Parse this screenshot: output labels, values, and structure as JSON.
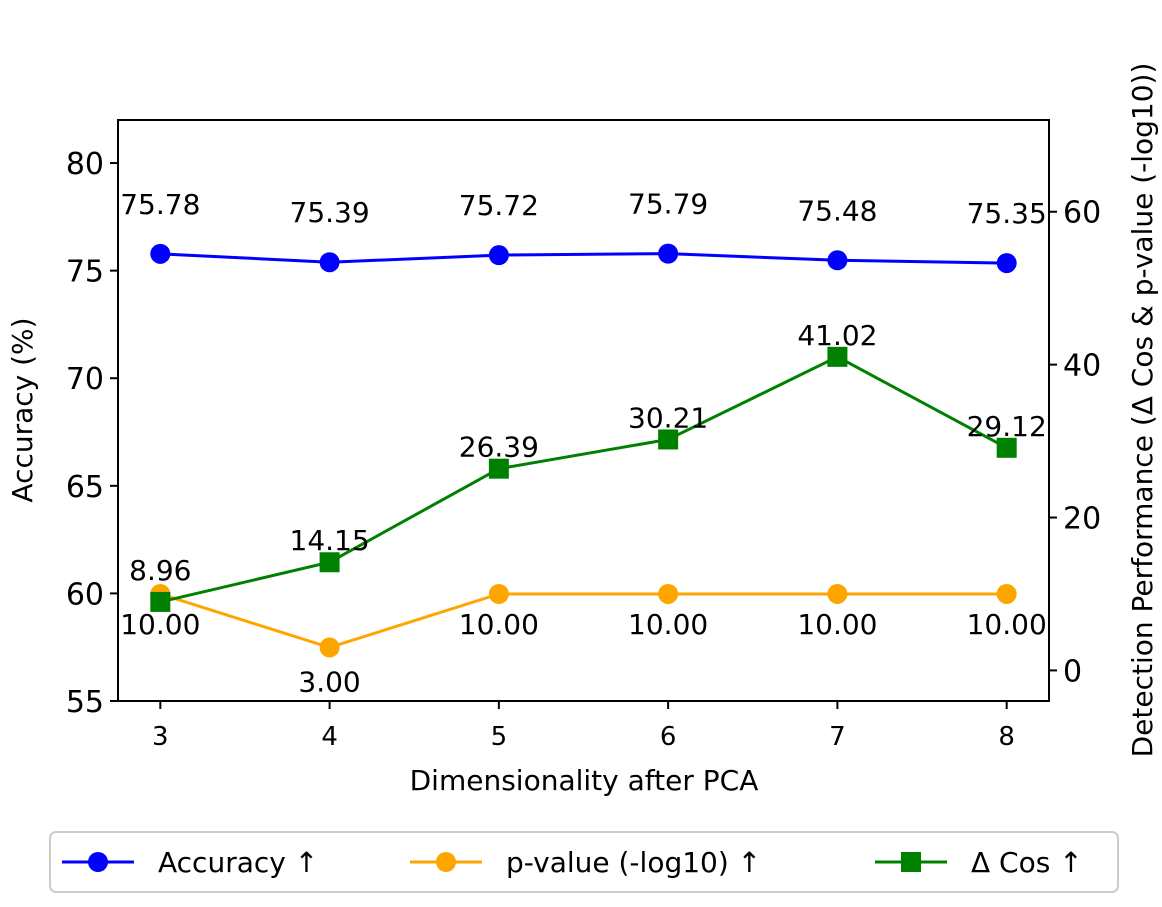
{
  "chart_data": {
    "type": "line",
    "xlabel": "Dimensionality after PCA",
    "ylabel_left": "Accuracy (%)",
    "ylabel_right": "Detection Performance (Δ Cos & p-value (-log10))",
    "x": [
      3,
      4,
      5,
      6,
      7,
      8
    ],
    "ylim_left": [
      55,
      82
    ],
    "ylim_right": [
      -4,
      72
    ],
    "yticks_left": [
      55,
      60,
      65,
      70,
      75,
      80
    ],
    "yticks_right": [
      0,
      20,
      40,
      60
    ],
    "grid": false,
    "legend_position": "bottom",
    "series": [
      {
        "name": "Accuracy ↑",
        "axis": "left",
        "marker": "circle",
        "color": "#0000ff",
        "values": [
          75.78,
          75.39,
          75.72,
          75.79,
          75.48,
          75.35
        ],
        "labels": [
          "75.78",
          "75.39",
          "75.72",
          "75.79",
          "75.48",
          "75.35"
        ]
      },
      {
        "name": "p-value (-log10) ↑",
        "axis": "right",
        "marker": "circle",
        "color": "#ffa500",
        "values": [
          10.0,
          3.0,
          10.0,
          10.0,
          10.0,
          10.0
        ],
        "labels": [
          "10.00",
          "3.00",
          "10.00",
          "10.00",
          "10.00",
          "10.00"
        ]
      },
      {
        "name": "Δ Cos ↑",
        "axis": "right",
        "marker": "square",
        "color": "#008000",
        "values": [
          8.96,
          14.15,
          26.39,
          30.21,
          41.02,
          29.12
        ],
        "labels": [
          "8.96",
          "14.15",
          "26.39",
          "30.21",
          "41.02",
          "29.12"
        ]
      }
    ]
  }
}
